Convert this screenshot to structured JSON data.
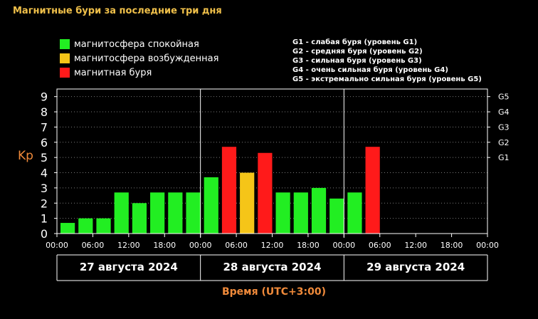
{
  "header": {
    "title": "Магнитные бури за последние три дня"
  },
  "legend": [
    {
      "label": "магнитосфера спокойная",
      "color": "#22ee22"
    },
    {
      "label": "магнитосфера возбужденная",
      "color": "#f5c518"
    },
    {
      "label": "магнитная буря",
      "color": "#ff1a1a"
    }
  ],
  "g_scale": [
    "G1 - слабая буря (уровень G1)",
    "G2 - средняя буря (уровень G2)",
    "G3 - сильная буря (уровень G3)",
    "G4 - очень сильная буря (уровень G4)",
    "G5 - экстремально сильная буря (уровень G5)"
  ],
  "colors": {
    "quiet": "#22ee22",
    "active": "#f5c518",
    "storm": "#ff1a1a",
    "axis": "#ffffff",
    "title": "#f0c04a",
    "axis_title": "#f08a3a"
  },
  "chart_data": {
    "type": "bar",
    "title": "Магнитные бури за последние три дня",
    "xlabel": "Время (UTC+3:00)",
    "ylabel": "Kp",
    "ylim": [
      0,
      9.5
    ],
    "yticks": [
      "0",
      "1",
      "2",
      "3",
      "4",
      "5",
      "6",
      "7",
      "8",
      "9"
    ],
    "right_ticks": [
      {
        "label": "G1",
        "value": 5
      },
      {
        "label": "G2",
        "value": 6
      },
      {
        "label": "G3",
        "value": 7
      },
      {
        "label": "G4",
        "value": 8
      },
      {
        "label": "G5",
        "value": 9
      }
    ],
    "xticks": [
      "00:00",
      "06:00",
      "12:00",
      "18:00",
      "00:00",
      "06:00",
      "12:00",
      "18:00",
      "00:00",
      "06:00",
      "12:00",
      "18:00",
      "00:00"
    ],
    "days": [
      "27 августа 2024",
      "28 августа 2024",
      "29 августа 2024"
    ],
    "grid": true,
    "bars": [
      {
        "value": 0.7,
        "level": "quiet"
      },
      {
        "value": 1.0,
        "level": "quiet"
      },
      {
        "value": 1.0,
        "level": "quiet"
      },
      {
        "value": 2.7,
        "level": "quiet"
      },
      {
        "value": 2.0,
        "level": "quiet"
      },
      {
        "value": 2.7,
        "level": "quiet"
      },
      {
        "value": 2.7,
        "level": "quiet"
      },
      {
        "value": 2.7,
        "level": "quiet"
      },
      {
        "value": 3.7,
        "level": "quiet"
      },
      {
        "value": 5.7,
        "level": "storm"
      },
      {
        "value": 4.0,
        "level": "active"
      },
      {
        "value": 5.3,
        "level": "storm"
      },
      {
        "value": 2.7,
        "level": "quiet"
      },
      {
        "value": 2.7,
        "level": "quiet"
      },
      {
        "value": 3.0,
        "level": "quiet"
      },
      {
        "value": 2.3,
        "level": "quiet"
      },
      {
        "value": 2.7,
        "level": "quiet"
      },
      {
        "value": 5.7,
        "level": "storm"
      }
    ]
  }
}
